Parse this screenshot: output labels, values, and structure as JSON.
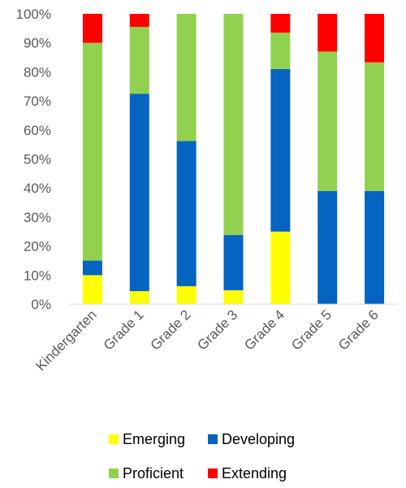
{
  "chart_data": {
    "type": "bar",
    "stacked": true,
    "title": "",
    "xlabel": "",
    "ylabel": "",
    "categories": [
      "Kindergarten",
      "Grade 1",
      "Grade 2",
      "Grade 3",
      "Grade 4",
      "Grade 5",
      "Grade 6"
    ],
    "series": [
      {
        "name": "Emerging",
        "color": "#FFFF00",
        "values": [
          10,
          4.5,
          6.2,
          4.8,
          25,
          0,
          0
        ]
      },
      {
        "name": "Developing",
        "color": "#0563C1",
        "values": [
          5,
          68,
          50,
          19,
          56,
          39,
          39
        ]
      },
      {
        "name": "Proficient",
        "color": "#92D050",
        "values": [
          75,
          23,
          43.8,
          76.2,
          12.5,
          48,
          44.3
        ]
      },
      {
        "name": "Extending",
        "color": "#FF0000",
        "values": [
          10,
          4.5,
          0,
          0,
          6.5,
          13,
          16.7
        ]
      }
    ],
    "ylim": [
      0,
      100
    ],
    "yticks": [
      "0%",
      "10%",
      "20%",
      "30%",
      "40%",
      "50%",
      "60%",
      "70%",
      "80%",
      "90%",
      "100%"
    ],
    "grid": false,
    "legend": "bottom"
  }
}
